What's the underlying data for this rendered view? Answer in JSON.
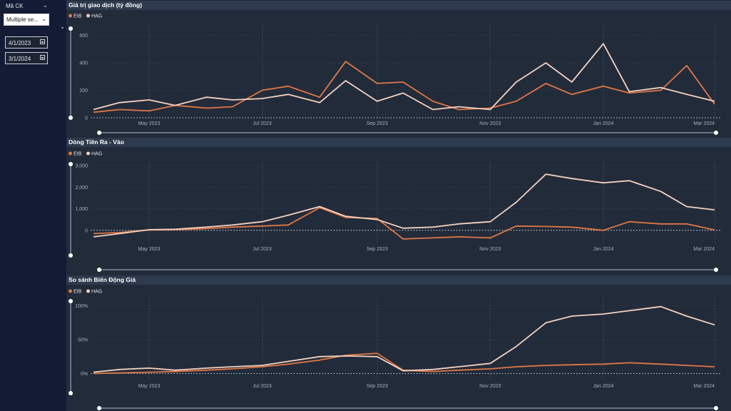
{
  "slicer": {
    "title": "Mã CK",
    "selected": "Multiple se...",
    "date_start": "4/1/2023",
    "date_end": "3/1/2024"
  },
  "colors": {
    "EIB": "#e07845",
    "HAG": "#f5d2c0"
  },
  "chart_data": [
    {
      "type": "line",
      "title": "Giá trị giao dịch (tỷ đồng)",
      "x_ticks": [
        "May 2023",
        "Jul 2023",
        "Sep 2023",
        "Nov 2023",
        "Jan 2024",
        "Mar 2024"
      ],
      "y_ticks": [
        "0",
        "200",
        "400",
        "600"
      ],
      "ylim": [
        0,
        650
      ],
      "x": [
        "4/1/2023",
        "4/15/2023",
        "5/1/2023",
        "5/15/2023",
        "6/1/2023",
        "6/15/2023",
        "7/1/2023",
        "7/15/2023",
        "8/1/2023",
        "8/15/2023",
        "9/1/2023",
        "9/15/2023",
        "10/1/2023",
        "10/15/2023",
        "11/1/2023",
        "11/15/2023",
        "12/1/2023",
        "12/15/2023",
        "1/1/2024",
        "1/15/2024",
        "2/1/2024",
        "2/15/2024",
        "3/1/2024"
      ],
      "series": [
        {
          "name": "EIB",
          "values": [
            40,
            60,
            50,
            90,
            70,
            80,
            200,
            230,
            150,
            410,
            250,
            260,
            120,
            60,
            70,
            120,
            250,
            170,
            230,
            180,
            200,
            380,
            100
          ]
        },
        {
          "name": "HAG",
          "values": [
            60,
            110,
            130,
            90,
            150,
            130,
            140,
            170,
            110,
            270,
            120,
            180,
            60,
            80,
            60,
            260,
            400,
            260,
            540,
            190,
            220,
            170,
            120
          ]
        }
      ]
    },
    {
      "type": "line",
      "title": "Dòng Tiền Ra - Vào",
      "x_ticks": [
        "May 2023",
        "Jul 2023",
        "Sep 2023",
        "Nov 2023",
        "Jan 2024",
        "Mar 2024"
      ],
      "y_ticks": [
        "0",
        "1,000",
        "2,000",
        "3,000"
      ],
      "ylim": [
        -600,
        3000
      ],
      "x": [
        "4/1/2023",
        "4/15/2023",
        "5/1/2023",
        "5/15/2023",
        "6/1/2023",
        "6/15/2023",
        "7/1/2023",
        "7/15/2023",
        "8/1/2023",
        "8/15/2023",
        "9/1/2023",
        "9/15/2023",
        "10/1/2023",
        "10/15/2023",
        "11/1/2023",
        "11/15/2023",
        "12/1/2023",
        "12/15/2023",
        "1/1/2024",
        "1/15/2024",
        "2/1/2024",
        "2/15/2024",
        "3/1/2024"
      ],
      "series": [
        {
          "name": "EIB",
          "values": [
            -150,
            -100,
            20,
            30,
            80,
            150,
            200,
            250,
            1050,
            600,
            550,
            -400,
            -350,
            -300,
            -350,
            200,
            180,
            150,
            0,
            400,
            300,
            300,
            20
          ]
        },
        {
          "name": "HAG",
          "values": [
            -300,
            -150,
            30,
            50,
            150,
            250,
            400,
            700,
            1100,
            650,
            500,
            100,
            150,
            300,
            400,
            1300,
            2600,
            2400,
            2200,
            2300,
            1800,
            1100,
            950
          ]
        }
      ]
    },
    {
      "type": "line",
      "title": "So sánh Biến Động Giá",
      "x_ticks": [
        "May 2023",
        "Jul 2023",
        "Sep 2023",
        "Nov 2023",
        "Jan 2024",
        "Mar 2024"
      ],
      "y_ticks": [
        "0%",
        "50%",
        "100%"
      ],
      "ylim": [
        -10,
        105
      ],
      "x": [
        "4/1/2023",
        "4/15/2023",
        "5/1/2023",
        "5/15/2023",
        "6/1/2023",
        "6/15/2023",
        "7/1/2023",
        "7/15/2023",
        "8/1/2023",
        "8/15/2023",
        "9/1/2023",
        "9/15/2023",
        "10/1/2023",
        "10/15/2023",
        "11/1/2023",
        "11/15/2023",
        "12/1/2023",
        "12/15/2023",
        "1/1/2024",
        "1/15/2024",
        "2/1/2024",
        "2/15/2024",
        "3/1/2024"
      ],
      "series": [
        {
          "name": "EIB",
          "values": [
            0,
            1,
            2,
            3,
            5,
            7,
            10,
            14,
            20,
            27,
            30,
            5,
            3,
            5,
            7,
            10,
            12,
            13,
            14,
            16,
            14,
            12,
            10
          ]
        },
        {
          "name": "HAG",
          "values": [
            2,
            6,
            8,
            5,
            8,
            10,
            12,
            18,
            25,
            26,
            25,
            4,
            6,
            10,
            15,
            40,
            75,
            85,
            88,
            93,
            99,
            85,
            72
          ]
        }
      ]
    }
  ]
}
